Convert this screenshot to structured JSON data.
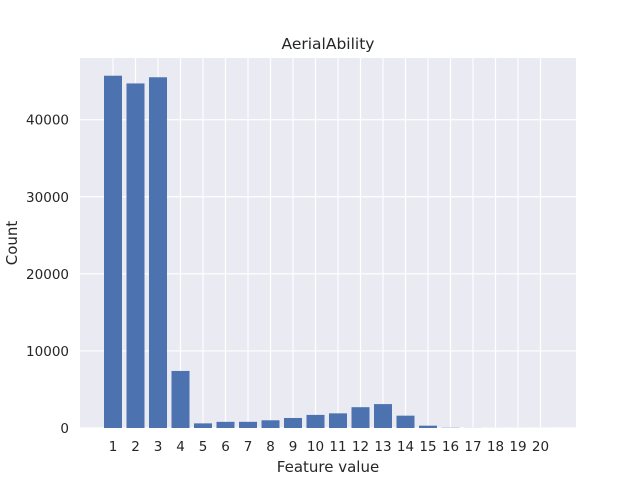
{
  "chart_data": {
    "type": "bar",
    "title": "AerialAbility",
    "xlabel": "Feature value",
    "ylabel": "Count",
    "categories": [
      "1",
      "2",
      "3",
      "4",
      "5",
      "6",
      "7",
      "8",
      "9",
      "10",
      "11",
      "12",
      "13",
      "14",
      "15",
      "16",
      "17",
      "18",
      "19",
      "20"
    ],
    "values": [
      45700,
      44700,
      45500,
      7400,
      600,
      800,
      800,
      1000,
      1300,
      1700,
      1900,
      2700,
      3100,
      1600,
      300,
      30,
      10,
      5,
      3,
      2
    ],
    "ylim": [
      0,
      48000
    ],
    "yticks": [
      0,
      10000,
      20000,
      30000,
      40000
    ],
    "ytick_labels": [
      "0",
      "10000",
      "20000",
      "30000",
      "40000"
    ],
    "grid": true,
    "colors": {
      "bar": "#4c72b0",
      "background": "#eaeaf2",
      "grid": "#ffffff"
    }
  }
}
